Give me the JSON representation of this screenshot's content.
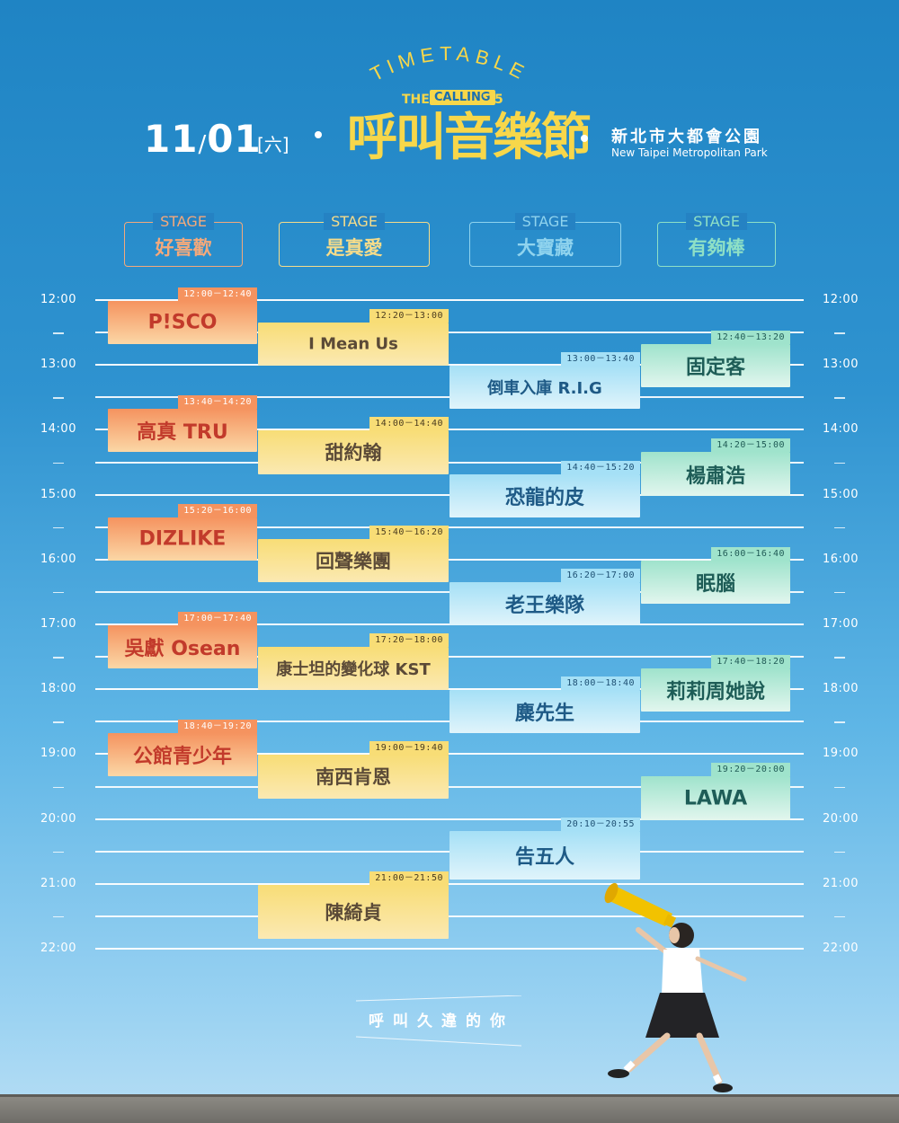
{
  "header": {
    "arc_text": "TIMETABLE",
    "brand": {
      "the": "THE",
      "calling": "CALLING",
      "year": "'25"
    },
    "festival_title": "呼叫音樂節",
    "date": {
      "month": "11",
      "slash": "/",
      "day": "01",
      "weekday": "[六]"
    },
    "venue_zh": "新北市大都會公園",
    "venue_en": "New Taipei Metropolitan Park"
  },
  "stages": [
    {
      "label": "STAGE",
      "name": "好喜歡"
    },
    {
      "label": "STAGE",
      "name": "是真愛"
    },
    {
      "label": "STAGE",
      "name": "大寶藏"
    },
    {
      "label": "STAGE",
      "name": "有夠棒"
    }
  ],
  "hours": [
    "12:00",
    "13:00",
    "14:00",
    "15:00",
    "16:00",
    "17:00",
    "18:00",
    "19:00",
    "20:00",
    "21:00",
    "22:00"
  ],
  "schedule": [
    {
      "stage": 0,
      "time": "12:00－12:40",
      "artist": "P!SCO",
      "start_min": 0,
      "end_min": 40
    },
    {
      "stage": 0,
      "time": "13:40－14:20",
      "artist": "高真 TRU",
      "start_min": 100,
      "end_min": 140
    },
    {
      "stage": 0,
      "time": "15:20－16:00",
      "artist": "DIZLIKE",
      "start_min": 200,
      "end_min": 240
    },
    {
      "stage": 0,
      "time": "17:00－17:40",
      "artist": "吳獻 Osean",
      "start_min": 300,
      "end_min": 340
    },
    {
      "stage": 0,
      "time": "18:40－19:20",
      "artist": "公館青少年",
      "start_min": 400,
      "end_min": 440
    },
    {
      "stage": 1,
      "time": "12:20－13:00",
      "artist": "I Mean Us",
      "start_min": 20,
      "end_min": 60
    },
    {
      "stage": 1,
      "time": "14:00－14:40",
      "artist": "甜約翰",
      "start_min": 120,
      "end_min": 160
    },
    {
      "stage": 1,
      "time": "15:40－16:20",
      "artist": "回聲樂團",
      "start_min": 220,
      "end_min": 260
    },
    {
      "stage": 1,
      "time": "17:20－18:00",
      "artist": "康士坦的變化球 KST",
      "start_min": 320,
      "end_min": 360
    },
    {
      "stage": 1,
      "time": "19:00－19:40",
      "artist": "南西肯恩",
      "start_min": 420,
      "end_min": 460
    },
    {
      "stage": 1,
      "time": "21:00－21:50",
      "artist": "陳綺貞",
      "start_min": 540,
      "end_min": 590
    },
    {
      "stage": 2,
      "time": "13:00－13:40",
      "artist": "倒車入庫 R.I.G",
      "start_min": 60,
      "end_min": 100
    },
    {
      "stage": 2,
      "time": "14:40－15:20",
      "artist": "恐龍的皮",
      "start_min": 160,
      "end_min": 200
    },
    {
      "stage": 2,
      "time": "16:20－17:00",
      "artist": "老王樂隊",
      "start_min": 260,
      "end_min": 300
    },
    {
      "stage": 2,
      "time": "18:00－18:40",
      "artist": "麋先生",
      "start_min": 360,
      "end_min": 400
    },
    {
      "stage": 2,
      "time": "20:10－20:55",
      "artist": "告五人",
      "start_min": 490,
      "end_min": 535
    },
    {
      "stage": 3,
      "time": "12:40－13:20",
      "artist": "固定客",
      "start_min": 40,
      "end_min": 80
    },
    {
      "stage": 3,
      "time": "14:20－15:00",
      "artist": "楊肅浩",
      "start_min": 140,
      "end_min": 180
    },
    {
      "stage": 3,
      "time": "16:00－16:40",
      "artist": "眠腦",
      "start_min": 240,
      "end_min": 280
    },
    {
      "stage": 3,
      "time": "17:40－18:20",
      "artist": "莉莉周她說",
      "start_min": 340,
      "end_min": 380
    },
    {
      "stage": 3,
      "time": "19:20－20:00",
      "artist": "LAWA",
      "start_min": 440,
      "end_min": 480
    }
  ],
  "tagline": "呼叫久違的你",
  "colors": {
    "background_top": "#1f84c4",
    "background_bottom": "#b7def4",
    "stage_0": "#f5935f",
    "stage_1": "#f8dd76",
    "stage_2": "#a5e0f6",
    "stage_3": "#9fe3cc",
    "title_yellow": "#f7d74a"
  }
}
